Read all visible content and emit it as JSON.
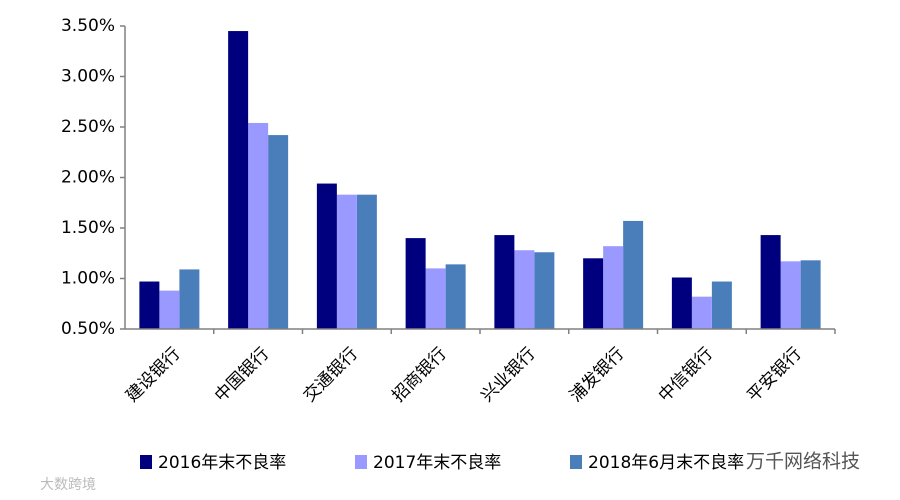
{
  "chart_data": {
    "type": "bar",
    "categories": [
      "建设银行",
      "中国银行",
      "交通银行",
      "招商银行",
      "兴业银行",
      "浦发银行",
      "中信银行",
      "平安银行"
    ],
    "series": [
      {
        "name": "2016年末不良率",
        "color": "#00007f",
        "values": [
          0.97,
          3.45,
          1.94,
          1.4,
          1.43,
          1.2,
          1.01,
          1.43
        ]
      },
      {
        "name": "2017年末不良率",
        "color": "#9999ff",
        "values": [
          0.88,
          2.54,
          1.83,
          1.1,
          1.28,
          1.32,
          0.82,
          1.17
        ]
      },
      {
        "name": "2018年6月末不良率",
        "color": "#4a7ebb",
        "values": [
          1.09,
          2.42,
          1.83,
          1.14,
          1.26,
          1.57,
          0.97,
          1.18
        ]
      }
    ],
    "ylim": [
      0.5,
      3.5
    ],
    "yticks": [
      {
        "value": 0.5,
        "label": "0.50%"
      },
      {
        "value": 1.0,
        "label": "1.00%"
      },
      {
        "value": 1.5,
        "label": "1.50%"
      },
      {
        "value": 2.0,
        "label": "2.00%"
      },
      {
        "value": 2.5,
        "label": "2.50%"
      },
      {
        "value": 3.0,
        "label": "3.00%"
      },
      {
        "value": 3.5,
        "label": "3.50%"
      }
    ],
    "grid": false,
    "legend": "bottom",
    "watermarks": [
      "万千网络科技",
      "大数跨境"
    ]
  }
}
